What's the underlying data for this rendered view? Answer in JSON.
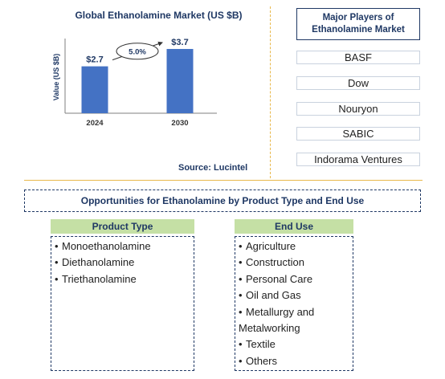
{
  "chart_data": {
    "type": "bar",
    "title": "Global Ethanolamine Market (US $B)",
    "ylabel": "Value (US $B)",
    "xlabel": "",
    "categories": [
      "2024",
      "2030"
    ],
    "values": [
      2.7,
      3.7
    ],
    "value_labels": [
      "$2.7",
      "$3.7"
    ],
    "cagr_label": "5.0%",
    "ylim": [
      0,
      4.3
    ],
    "bar_color": "#4472c4"
  },
  "source": "Source: Lucintel",
  "players": {
    "title": "Major Players of Ethanolamine Market",
    "items": [
      "BASF",
      "Dow",
      "Nouryon",
      "SABIC",
      "Indorama Ventures"
    ]
  },
  "opportunities": {
    "title": "Opportunities for Ethanolamine by Product Type and End Use",
    "product_type": {
      "heading": "Product Type",
      "items": [
        "Monoethanolamine",
        "Diethanolamine",
        "Triethanolamine"
      ]
    },
    "end_use": {
      "heading": "End Use",
      "items": [
        "Agriculture",
        "Construction",
        "Personal Care",
        "Oil and Gas",
        "Metallurgy and Metalworking",
        "Textile",
        "Others"
      ]
    }
  },
  "colors": {
    "accent": "#1f3864",
    "divider": "#e8b84b",
    "header_fill": "#c5e0a5"
  }
}
